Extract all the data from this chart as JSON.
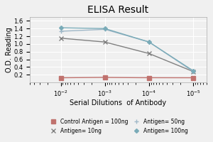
{
  "title": "ELISA Result",
  "xlabel": "Serial Dilutions  of Antibody",
  "ylabel": "O.D. Reading",
  "x_values": [
    0.01,
    0.001,
    0.0001,
    1e-05
  ],
  "series": [
    {
      "label": "Control Antigen = 100ng",
      "color": "#c0726e",
      "marker": "s",
      "markersize": 4,
      "linewidth": 1.0,
      "values": [
        0.12,
        0.13,
        0.12,
        0.12
      ]
    },
    {
      "label": "Antigen= 10ng",
      "color": "#808080",
      "marker": "x",
      "markersize": 5,
      "linewidth": 1.0,
      "values": [
        1.15,
        1.05,
        0.75,
        0.28
      ]
    },
    {
      "label": "Antigen= 50ng",
      "color": "#a0b8c8",
      "marker": "+",
      "markersize": 5,
      "linewidth": 1.0,
      "values": [
        1.33,
        1.38,
        1.05,
        0.28
      ]
    },
    {
      "label": "Antigen= 100ng",
      "color": "#7aabb8",
      "marker": "D",
      "markersize": 3,
      "linewidth": 1.0,
      "values": [
        1.42,
        1.4,
        1.05,
        0.3
      ]
    }
  ],
  "ylim": [
    0,
    1.7
  ],
  "yticks": [
    0.2,
    0.4,
    0.6,
    0.8,
    1.0,
    1.2,
    1.4,
    1.6
  ],
  "background_color": "#f0f0f0",
  "plot_bg_color": "#f0f0f0",
  "grid_color": "#ffffff",
  "title_fontsize": 10,
  "tick_fontsize": 6,
  "label_fontsize": 7,
  "legend_fontsize": 5.5
}
